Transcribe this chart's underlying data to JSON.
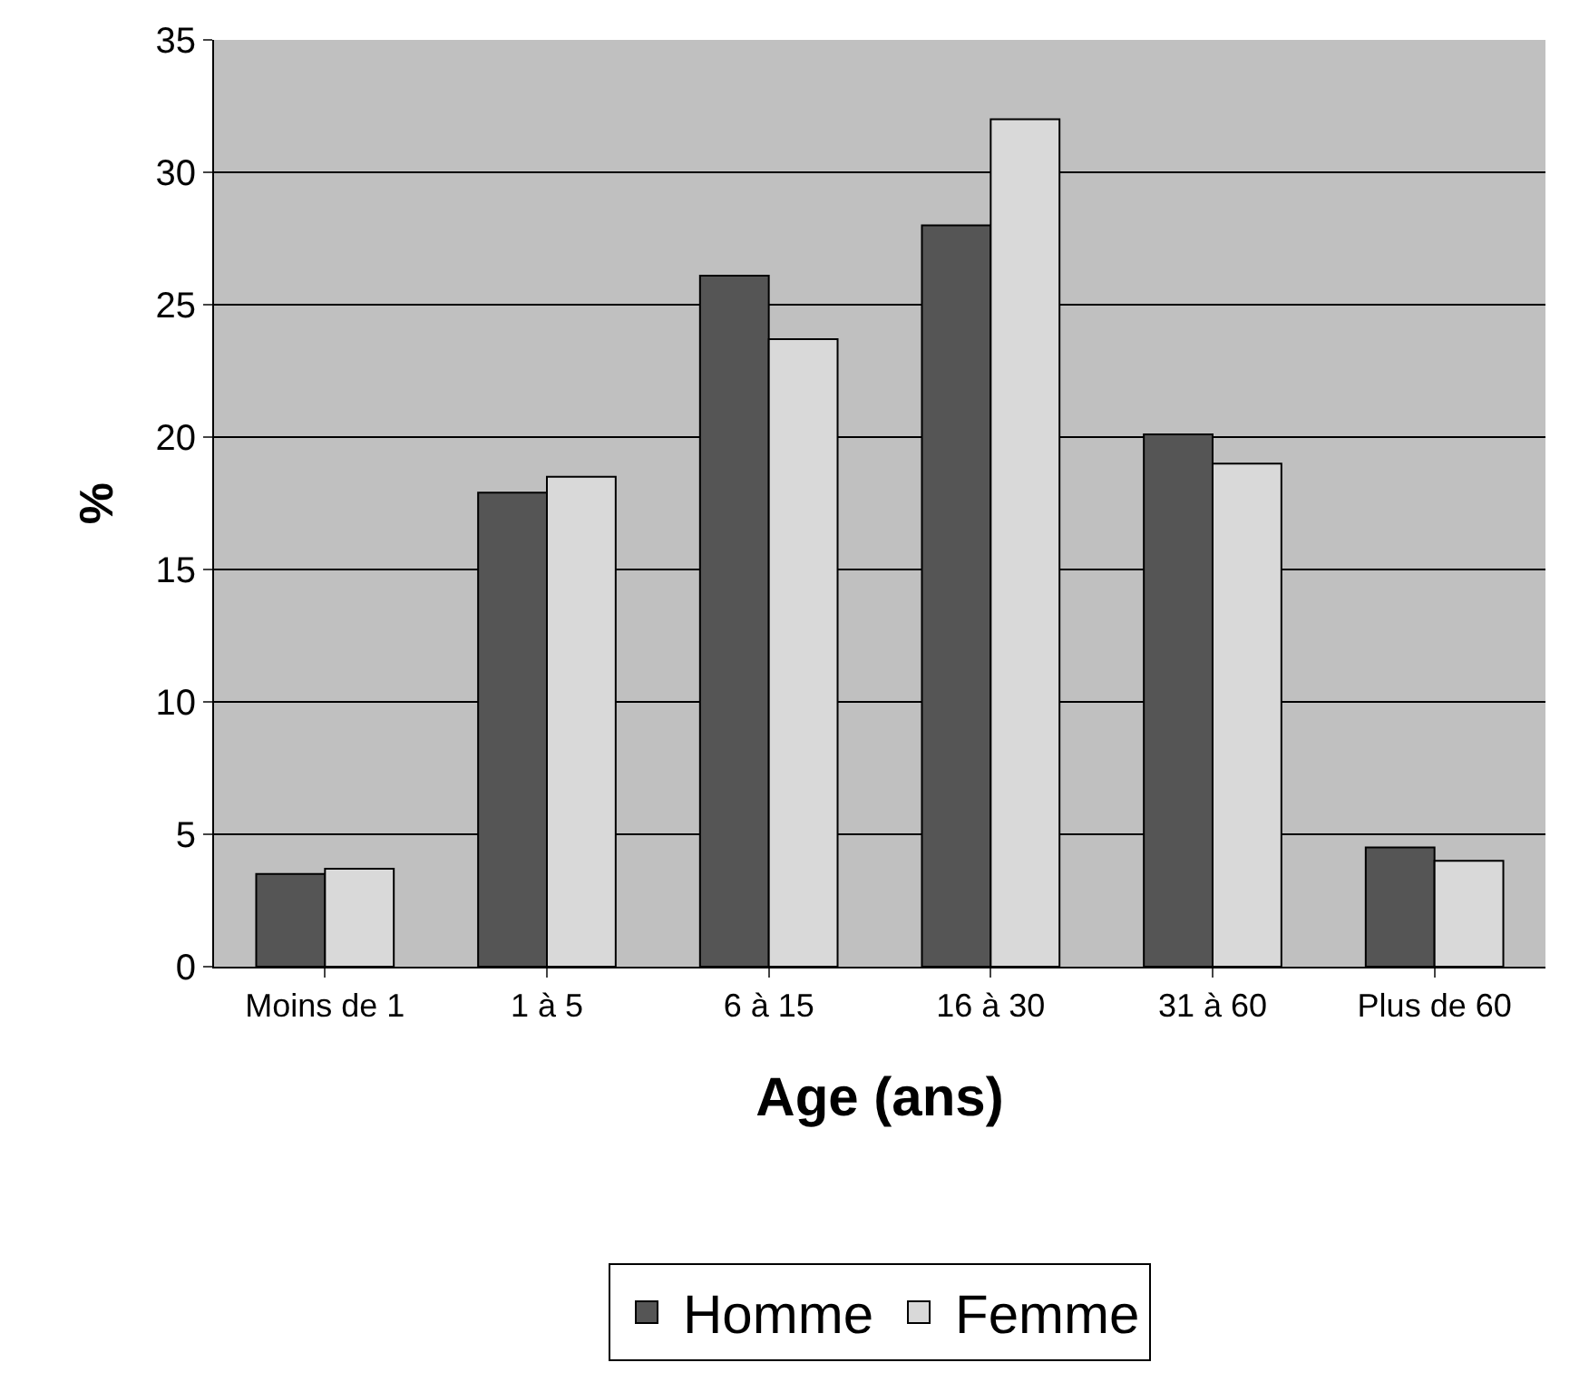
{
  "chart_data": {
    "type": "bar",
    "xlabel": "Age (ans)",
    "ylabel": "%",
    "categories": [
      "Moins de 1",
      "1 à 5",
      "6 à 15",
      "16 à 30",
      "31 à 60",
      "Plus de 60"
    ],
    "series": [
      {
        "name": "Homme",
        "color": "#555555",
        "values": [
          3.5,
          17.9,
          26.1,
          28.0,
          20.1,
          4.5
        ]
      },
      {
        "name": "Femme",
        "color": "#d9d9d9",
        "values": [
          3.7,
          18.5,
          23.7,
          32.0,
          19.0,
          4.0
        ]
      }
    ],
    "ylim": [
      0,
      35
    ],
    "yticks": [
      0,
      5,
      10,
      15,
      20,
      25,
      30,
      35
    ],
    "grid": "y",
    "legend": "bottom"
  }
}
